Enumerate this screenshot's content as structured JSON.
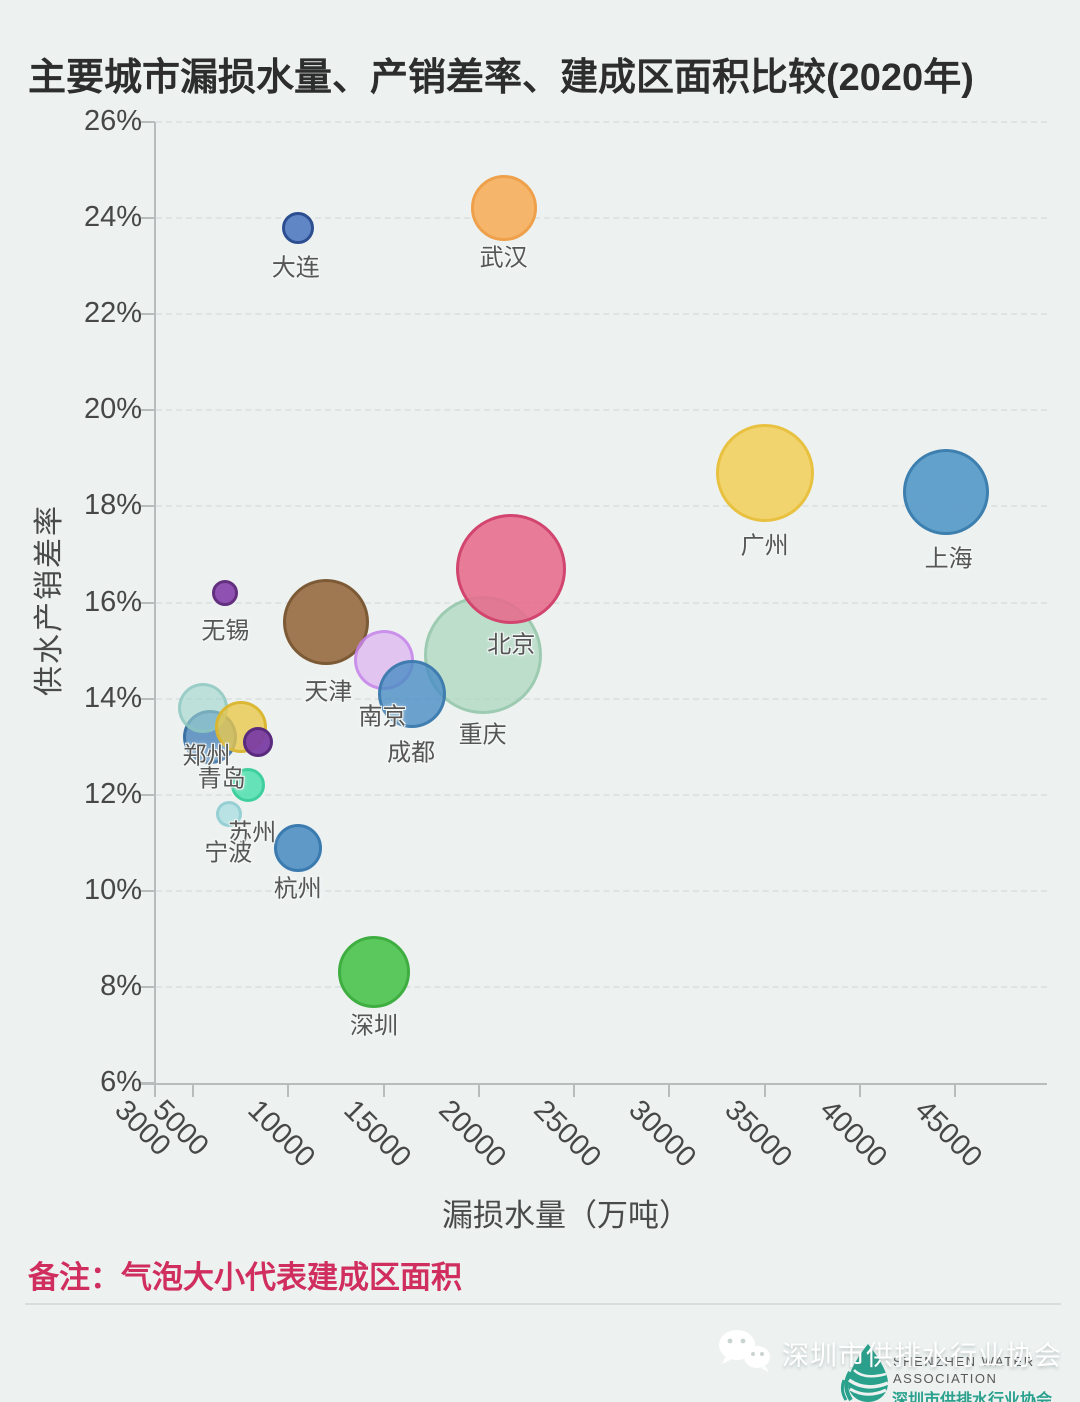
{
  "title": "主要城市漏损水量、产销差率、建成区面积比较(2020年)",
  "note": "备注：气泡大小代表建成区面积",
  "watermark": {
    "icon": "wechat-icon",
    "text": "深圳市供排水行业协会"
  },
  "logo": {
    "icon": "water-drop-icon",
    "line1": "SHENZHEN WATER",
    "line2": "ASSOCIATION",
    "line3": "深圳市供排水行业协会",
    "brand_color": "#2aa18d"
  },
  "colors": {
    "background": "#edf2f1",
    "note_text": "#d02e5e",
    "axis_line": "#b6bdbc",
    "gridline": "#dde4e3",
    "tick_text": "#474747",
    "city_label_text": "#565656"
  },
  "chart_data": {
    "type": "scatter",
    "title": "主要城市漏损水量、产销差率、建成区面积比较(2020年)",
    "xlabel": "漏损水量（万吨）",
    "ylabel": "供水产销差率",
    "size_note": "气泡大小代表建成区面积",
    "grid": "dashed-horizontal",
    "x_ticks": [
      3000,
      5000,
      10000,
      15000,
      20000,
      25000,
      30000,
      35000,
      40000,
      45000
    ],
    "y_ticks_percent": [
      26,
      24,
      22,
      20,
      18,
      16,
      14,
      12,
      10,
      8,
      6
    ],
    "xlim": [
      3000,
      46000
    ],
    "ylim_percent": [
      6,
      26
    ],
    "series": [
      {
        "id": "chongqing",
        "name": "重庆",
        "x": 20200,
        "y_percent": 14.9,
        "radius_px": 59,
        "fill": "#acd6be",
        "fill_opacity": 0.72,
        "border": "#96c6aa",
        "label_dy": 77
      },
      {
        "id": "beijing",
        "name": "北京",
        "x": 21700,
        "y_percent": 16.7,
        "radius_px": 55,
        "fill": "#e56e8e",
        "fill_opacity": 0.9,
        "border": "#d1456f",
        "label_dy": 73
      },
      {
        "id": "tianjin",
        "name": "天津",
        "x": 12000,
        "y_percent": 15.6,
        "radius_px": 43,
        "fill": "#9b7148",
        "fill_opacity": 0.95,
        "border": "#7d5a36",
        "label_dx": 2,
        "label_dy": 67
      },
      {
        "id": "nanjing",
        "name": "南京",
        "x": 15000,
        "y_percent": 14.8,
        "radius_px": 30,
        "fill": "#d9a6f0",
        "fill_opacity": 0.6,
        "border": "#c179e8",
        "label_dx": -1,
        "label_dy": 54
      },
      {
        "id": "chengdu",
        "name": "成都",
        "x": 16500,
        "y_percent": 14.1,
        "radius_px": 34,
        "fill": "#4a8cc4",
        "fill_opacity": 0.8,
        "border": "#3c79ad",
        "label_dx": -1,
        "label_dy": 56
      },
      {
        "id": "unlabeled-blue",
        "name": "",
        "x": 5900,
        "y_percent": 13.2,
        "radius_px": 27,
        "fill": "#3e7bb5",
        "fill_opacity": 0.75,
        "border": "#346a9e"
      },
      {
        "id": "zhengzhou",
        "name": "郑州",
        "x": 5500,
        "y_percent": 13.8,
        "radius_px": 25,
        "fill": "#9ed3cd",
        "fill_opacity": 0.6,
        "border": "#8ac4bd",
        "label_dx": 4,
        "label_dy": 45
      },
      {
        "id": "qingdao",
        "name": "青岛",
        "x": 7500,
        "y_percent": 13.4,
        "radius_px": 26,
        "fill": "#e9c84d",
        "fill_opacity": 0.8,
        "border": "#d9b52e",
        "label_dx": -19,
        "label_dy": 49
      },
      {
        "id": "unlabeled-purple",
        "name": "",
        "x": 8400,
        "y_percent": 13.1,
        "radius_px": 15,
        "fill": "#7b3da3",
        "fill_opacity": 0.95,
        "border": "#5a2a7d"
      },
      {
        "id": "suzhou",
        "name": "苏州",
        "x": 7900,
        "y_percent": 12.2,
        "radius_px": 17,
        "fill": "#55e0b0",
        "fill_opacity": 0.9,
        "border": "#3fcf9d",
        "label_dx": 4,
        "label_dy": 45
      },
      {
        "id": "ningbo",
        "name": "宁波",
        "x": 6900,
        "y_percent": 11.6,
        "radius_px": 13,
        "fill": "#aadde0",
        "fill_opacity": 0.8,
        "border": "#92cdd2",
        "label_dx": -1,
        "label_dy": 36
      },
      {
        "id": "dalian",
        "name": "大连",
        "x": 10500,
        "y_percent": 23.8,
        "radius_px": 16,
        "fill": "#5a7fc2",
        "fill_opacity": 0.95,
        "border": "#2d4f92",
        "label_dx": -2,
        "label_dy": 37
      },
      {
        "id": "wuhan",
        "name": "武汉",
        "x": 21300,
        "y_percent": 24.2,
        "radius_px": 33,
        "fill": "#f5b264",
        "fill_opacity": 0.95,
        "border": "#efa04b",
        "label_dy": 47
      },
      {
        "id": "guangzhou",
        "name": "广州",
        "x": 35000,
        "y_percent": 18.7,
        "radius_px": 49,
        "fill": "#f2d266",
        "fill_opacity": 0.95,
        "border": "#e9c141",
        "label_dy": 70
      },
      {
        "id": "shanghai",
        "name": "上海",
        "x": 44500,
        "y_percent": 18.3,
        "radius_px": 43,
        "fill": "#5b9cc9",
        "fill_opacity": 0.95,
        "border": "#3d7fae",
        "label_dx": 3,
        "label_dy": 64
      },
      {
        "id": "wuxi",
        "name": "无锡",
        "x": 6700,
        "y_percent": 16.2,
        "radius_px": 13,
        "fill": "#8a48ae",
        "fill_opacity": 0.95,
        "border": "#63307f",
        "label_dy": 35
      },
      {
        "id": "hangzhou",
        "name": "杭州",
        "x": 10500,
        "y_percent": 10.9,
        "radius_px": 24,
        "fill": "#4e8fc2",
        "fill_opacity": 0.9,
        "border": "#3c7bb0",
        "label_dy": 38
      },
      {
        "id": "shenzhen",
        "name": "深圳",
        "x": 14500,
        "y_percent": 8.3,
        "radius_px": 36,
        "fill": "#53c554",
        "fill_opacity": 0.95,
        "border": "#3fae41",
        "label_dy": 51
      }
    ]
  }
}
